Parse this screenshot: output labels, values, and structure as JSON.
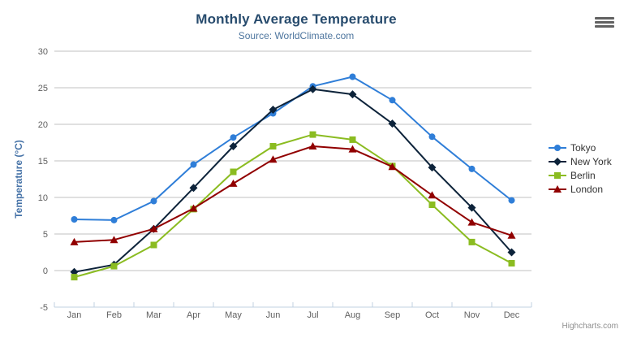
{
  "header": {
    "title": "Monthly Average Temperature",
    "subtitle": "Source: WorldClimate.com"
  },
  "credits": {
    "label": "Highcharts.com"
  },
  "export_menu": {
    "icon": "hamburger-icon"
  },
  "chart_data": {
    "type": "line",
    "title": "Monthly Average Temperature",
    "subtitle": "Source: WorldClimate.com",
    "categories": [
      "Jan",
      "Feb",
      "Mar",
      "Apr",
      "May",
      "Jun",
      "Jul",
      "Aug",
      "Sep",
      "Oct",
      "Nov",
      "Dec"
    ],
    "series": [
      {
        "name": "Tokyo",
        "color": "#2f7ed8",
        "marker": "circle",
        "values": [
          7.0,
          6.9,
          9.5,
          14.5,
          18.2,
          21.5,
          25.2,
          26.5,
          23.3,
          18.3,
          13.9,
          9.6
        ]
      },
      {
        "name": "New York",
        "color": "#0d233a",
        "marker": "diamond",
        "values": [
          -0.2,
          0.8,
          5.7,
          11.3,
          17.0,
          22.0,
          24.8,
          24.1,
          20.1,
          14.1,
          8.6,
          2.5
        ]
      },
      {
        "name": "Berlin",
        "color": "#8bbc21",
        "marker": "square",
        "values": [
          -0.9,
          0.6,
          3.5,
          8.4,
          13.5,
          17.0,
          18.6,
          17.9,
          14.3,
          9.0,
          3.9,
          1.0
        ]
      },
      {
        "name": "London",
        "color": "#910000",
        "marker": "triangle",
        "values": [
          3.9,
          4.2,
          5.7,
          8.5,
          11.9,
          15.2,
          17.0,
          16.6,
          14.2,
          10.3,
          6.6,
          4.8
        ]
      }
    ],
    "xlabel": "",
    "ylabel": "Temperature (°C)",
    "ylim": [
      -5,
      30
    ],
    "yticks": [
      -5,
      0,
      5,
      10,
      15,
      20,
      25,
      30
    ],
    "grid": true,
    "legend_position": "right",
    "colors": {
      "title": "#274b6d",
      "subtitle": "#4d759e",
      "axis_title": "#4572a7",
      "axis_labels": "#606060",
      "gridline": "#c0c0c0",
      "axis_line": "#c0d0e0"
    }
  }
}
